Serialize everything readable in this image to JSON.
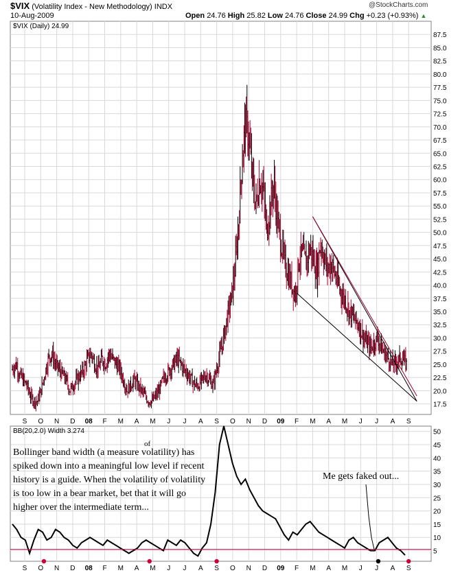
{
  "header": {
    "symbol": "$VIX",
    "name": "(Volatility Index - New Methodology)",
    "exchange": "INDX",
    "date": "10-Aug-2009",
    "copyright": "@StockCharts.com",
    "open_label": "Open",
    "open": "24.76",
    "high_label": "High",
    "high": "25.82",
    "low_label": "Low",
    "low": "24.76",
    "close_label": "Close",
    "close": "24.99",
    "chg_label": "Chg",
    "chg": "+0.23 (+0.93%)"
  },
  "price_legend": "$VIX (Daily) 24.99",
  "bb_legend": "BB(20,2.0) Width 3.274",
  "annotation_lines": [
    "Bollinger band width (a measure volatility) has",
    "spiked down into a meaningful low level if recent",
    "history is a guide. When the volatility of volatility",
    "is too low in a bear market, bet that it will go",
    "higher over the intermediate term..."
  ],
  "annotation_of": "of",
  "fakeout_note": "Me gets faked out...",
  "colors": {
    "bar": "#a0002a",
    "frame": "#808080",
    "line": "#000000",
    "threshold": "#c0003c",
    "marker": "#d0003c"
  },
  "chart_data": [
    {
      "type": "line",
      "series_kind": "daily OHLC bars",
      "x_tick_labels": [
        "S",
        "O",
        "N",
        "D",
        "08",
        "F",
        "M",
        "A",
        "M",
        "J",
        "J",
        "A",
        "S",
        "O",
        "N",
        "D",
        "09",
        "F",
        "M",
        "A",
        "M",
        "J",
        "J",
        "A",
        "S"
      ],
      "y_tick_labels": [
        "17.5",
        "20.0",
        "22.5",
        "25.0",
        "27.5",
        "30.0",
        "32.5",
        "35.0",
        "37.5",
        "40.0",
        "42.5",
        "45.0",
        "47.5",
        "50.0",
        "52.5",
        "55.0",
        "57.5",
        "60.0",
        "62.5",
        "65.0",
        "67.5",
        "70.0",
        "72.5",
        "75.0",
        "77.5",
        "80.0",
        "82.5",
        "85.0",
        "87.5"
      ],
      "ylim": [
        15.5,
        90
      ],
      "x_month_index": [
        0,
        1,
        2,
        3,
        4,
        5,
        6,
        7,
        8,
        9,
        10,
        11,
        12,
        13,
        14,
        15,
        16,
        17,
        18,
        19,
        20,
        21,
        22,
        23,
        24
      ],
      "closes": [
        24,
        25,
        23,
        22,
        21,
        19,
        18,
        18,
        20,
        23,
        26,
        27,
        25,
        24,
        23,
        22,
        20,
        21,
        22,
        23,
        24,
        26,
        27,
        25,
        24,
        26,
        25,
        27,
        26,
        25,
        24,
        22,
        20,
        21,
        22,
        21,
        20,
        19,
        18,
        18,
        19,
        20,
        22,
        23,
        24,
        25,
        26,
        25,
        24,
        23,
        22,
        21,
        21,
        22,
        23,
        22,
        21,
        24,
        27,
        30,
        34,
        37,
        42,
        50,
        62,
        71,
        68,
        60,
        55,
        60,
        58,
        50,
        55,
        59,
        52,
        48,
        44,
        42,
        40,
        38,
        45,
        46,
        44,
        47,
        45,
        42,
        48,
        45,
        43,
        44,
        42,
        40,
        38,
        37,
        35,
        34,
        33,
        32,
        30,
        29,
        28,
        29,
        30,
        28,
        27,
        26,
        25,
        25,
        26,
        26,
        25
      ],
      "trendlines": [
        {
          "from": [
            "Feb 09",
            38.5
          ],
          "to": [
            "Sep 09",
            18.0
          ]
        },
        {
          "from": [
            "Mar 09",
            53.0
          ],
          "to": [
            "Sep 09",
            18.0
          ]
        },
        {
          "from": [
            "Mar 09",
            53.0
          ],
          "to": [
            "Sep 09",
            19.0
          ]
        }
      ]
    },
    {
      "type": "line",
      "name": "BB(20,2.0) Width",
      "x_tick_labels": [
        "S",
        "O",
        "N",
        "D",
        "08",
        "F",
        "M",
        "A",
        "M",
        "J",
        "J",
        "A",
        "S",
        "O",
        "N",
        "D",
        "09",
        "F",
        "M",
        "A",
        "M",
        "J",
        "J",
        "A",
        "S"
      ],
      "y_tick_labels": [
        "5",
        "10",
        "15",
        "20",
        "25",
        "30",
        "35",
        "40",
        "45",
        "50"
      ],
      "ylim": [
        1,
        52
      ],
      "threshold": 5.5,
      "values": [
        15,
        13,
        10,
        9,
        4,
        9,
        13,
        12,
        9,
        10,
        13,
        12,
        10,
        9,
        7,
        6,
        8,
        9,
        10,
        9,
        8,
        7,
        9,
        8,
        7,
        6,
        5,
        4,
        5,
        6,
        8,
        9,
        8,
        7,
        6,
        5,
        9,
        8,
        7,
        9,
        8,
        6,
        4,
        3,
        6,
        8,
        15,
        27,
        45,
        52,
        45,
        38,
        33,
        30,
        32,
        28,
        25,
        22,
        20,
        19,
        18,
        17,
        14,
        11,
        9,
        12,
        11,
        13,
        15,
        16,
        14,
        12,
        11,
        10,
        9,
        8,
        7,
        6,
        9,
        10,
        8,
        7,
        6,
        5,
        5,
        8,
        9,
        10,
        8,
        6,
        5,
        3.3
      ],
      "fakeout_values": [
        30,
        18,
        10,
        5.5
      ],
      "signal_markers_month_index": [
        1.2,
        7.8,
        12.0,
        22.1,
        24.0
      ]
    }
  ]
}
